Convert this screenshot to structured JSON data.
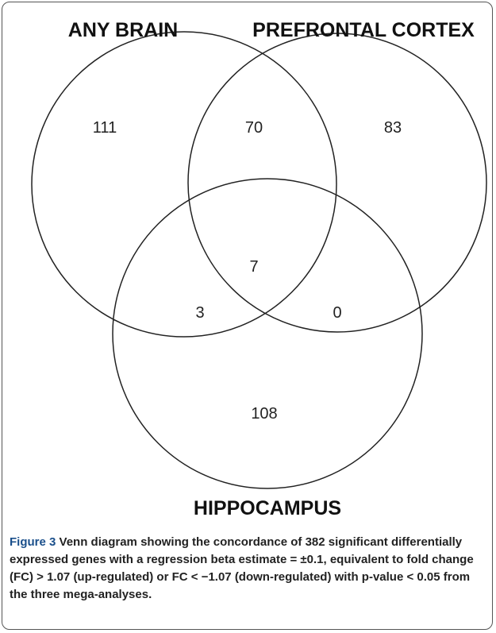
{
  "sets": [
    {
      "label": "ANY BRAIN"
    },
    {
      "label": "PREFRONTAL CORTEX"
    },
    {
      "label": "HIPPOCAMPUS"
    }
  ],
  "regions": [
    "111",
    "70",
    "83",
    "7",
    "3",
    "0",
    "108"
  ],
  "caption": {
    "label": "Figure 3",
    "text": "Venn diagram showing the concordance of 382 significant differentially expressed genes with a regression beta estimate = ±0.1, equivalent to fold change (FC) > 1.07 (up-regulated) or FC < −1.07 (down-regulated) with p-value < 0.05 from the three mega-analyses."
  }
}
